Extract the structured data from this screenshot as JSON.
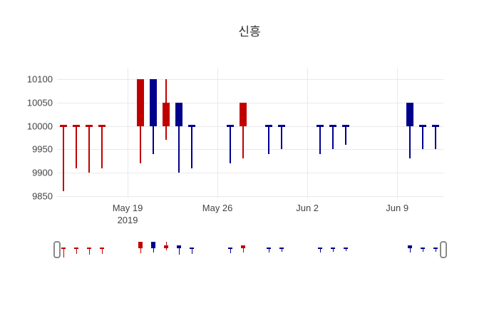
{
  "title": "신흥",
  "chart_data": {
    "type": "candlestick",
    "title": "신흥",
    "xlabel": "",
    "ylabel": "",
    "grid": true,
    "legend": "none",
    "rangeslider": true,
    "ylim": [
      9845,
      10125
    ],
    "xlim_days": [
      -0.5,
      29.6
    ],
    "x_unit": "days, day 0 = first candle of the week before the May 19 tick",
    "y_ticks": [
      10100,
      10050,
      10000,
      9950,
      9900,
      9850
    ],
    "x_ticks": [
      {
        "day": 5,
        "label": "May 19",
        "sub": "2019"
      },
      {
        "day": 12,
        "label": "May 26",
        "sub": ""
      },
      {
        "day": 19,
        "label": "Jun 2",
        "sub": ""
      },
      {
        "day": 26,
        "label": "Jun 9",
        "sub": ""
      }
    ],
    "colors": {
      "increasing": "#c00000",
      "decreasing": "#00008b",
      "grid": "#e9e9e9",
      "tick_text": "#444444",
      "background": "#ffffff"
    },
    "candles": [
      {
        "day": 0,
        "open": 10000,
        "high": 10000,
        "low": 9860,
        "close": 10000,
        "dir": "up"
      },
      {
        "day": 1,
        "open": 10000,
        "high": 10000,
        "low": 9910,
        "close": 10000,
        "dir": "up"
      },
      {
        "day": 2,
        "open": 10000,
        "high": 10000,
        "low": 9900,
        "close": 10000,
        "dir": "up"
      },
      {
        "day": 3,
        "open": 10000,
        "high": 10000,
        "low": 9910,
        "close": 10000,
        "dir": "up"
      },
      {
        "day": 6,
        "open": 10000,
        "high": 10100,
        "low": 9920,
        "close": 10100,
        "dir": "up"
      },
      {
        "day": 7,
        "open": 10100,
        "high": 10100,
        "low": 9940,
        "close": 10000,
        "dir": "down"
      },
      {
        "day": 8,
        "open": 10000,
        "high": 10100,
        "low": 9970,
        "close": 10050,
        "dir": "up"
      },
      {
        "day": 9,
        "open": 10050,
        "high": 10050,
        "low": 9900,
        "close": 10000,
        "dir": "down"
      },
      {
        "day": 10,
        "open": 10000,
        "high": 10000,
        "low": 9910,
        "close": 10000,
        "dir": "down"
      },
      {
        "day": 13,
        "open": 10000,
        "high": 10000,
        "low": 9920,
        "close": 10000,
        "dir": "down"
      },
      {
        "day": 14,
        "open": 10000,
        "high": 10050,
        "low": 9930,
        "close": 10050,
        "dir": "up"
      },
      {
        "day": 16,
        "open": 10000,
        "high": 10000,
        "low": 9940,
        "close": 10000,
        "dir": "down"
      },
      {
        "day": 17,
        "open": 10000,
        "high": 10000,
        "low": 9950,
        "close": 10000,
        "dir": "down"
      },
      {
        "day": 20,
        "open": 10000,
        "high": 10000,
        "low": 9940,
        "close": 10000,
        "dir": "down"
      },
      {
        "day": 21,
        "open": 10000,
        "high": 10000,
        "low": 9950,
        "close": 10000,
        "dir": "down"
      },
      {
        "day": 22,
        "open": 10000,
        "high": 10000,
        "low": 9960,
        "close": 10000,
        "dir": "down"
      },
      {
        "day": 27,
        "open": 10050,
        "high": 10050,
        "low": 9930,
        "close": 10000,
        "dir": "down"
      },
      {
        "day": 28,
        "open": 10000,
        "high": 10000,
        "low": 9950,
        "close": 10000,
        "dir": "down"
      },
      {
        "day": 29,
        "open": 10000,
        "high": 10000,
        "low": 9950,
        "close": 10000,
        "dir": "down"
      }
    ]
  }
}
